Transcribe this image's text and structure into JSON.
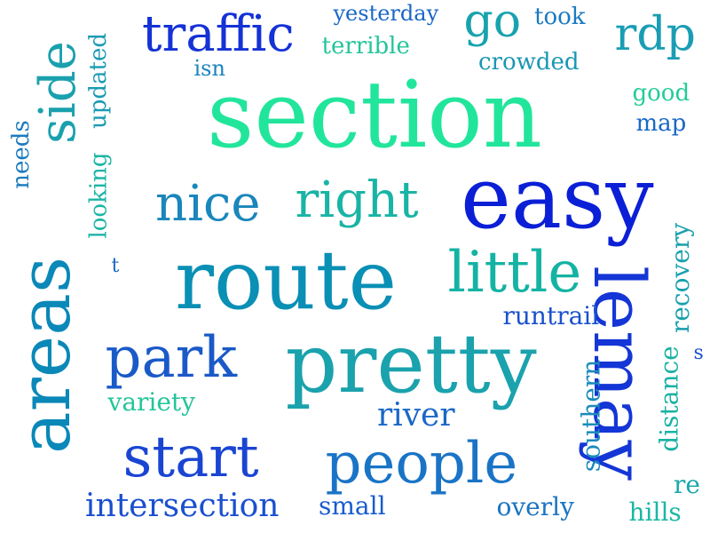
{
  "words": [
    {
      "text": "section",
      "color": "#22e59c"
    },
    {
      "text": "easy",
      "color": "#0b1fd6"
    },
    {
      "text": "route",
      "color": "#0a8fb5"
    },
    {
      "text": "pretty",
      "color": "#1aa2ad"
    },
    {
      "text": "areas",
      "color": "#0a88b8"
    },
    {
      "text": "lemay",
      "color": "#1436d6"
    },
    {
      "text": "people",
      "color": "#1a74c6"
    },
    {
      "text": "start",
      "color": "#1a45d3"
    },
    {
      "text": "park",
      "color": "#1a59c8"
    },
    {
      "text": "little",
      "color": "#14b3a3"
    },
    {
      "text": "traffic",
      "color": "#1432d6"
    },
    {
      "text": "nice",
      "color": "#1a86bc"
    },
    {
      "text": "right",
      "color": "#19b4a5"
    },
    {
      "text": "side",
      "color": "#1aa0ae"
    },
    {
      "text": "go",
      "color": "#17a3ad"
    },
    {
      "text": "rdp",
      "color": "#1a9db4"
    },
    {
      "text": "intersection",
      "color": "#1a4fd0"
    },
    {
      "text": "river",
      "color": "#1a67c8"
    },
    {
      "text": "runtrail",
      "color": "#1a52cd"
    },
    {
      "text": "recovery",
      "color": "#1aa0ad"
    },
    {
      "text": "distance",
      "color": "#19b2a3"
    },
    {
      "text": "southern",
      "color": "#1a8bbc"
    },
    {
      "text": "variety",
      "color": "#23c59a"
    },
    {
      "text": "small",
      "color": "#1a5ccd"
    },
    {
      "text": "overly",
      "color": "#1a74c2"
    },
    {
      "text": "hills",
      "color": "#1ab8a3"
    },
    {
      "text": "re",
      "color": "#1aa7ac"
    },
    {
      "text": "crowded",
      "color": "#1a96b4"
    },
    {
      "text": "terrible",
      "color": "#23c59a"
    },
    {
      "text": "yesterday",
      "color": "#1a67c6"
    },
    {
      "text": "took",
      "color": "#1a7abf"
    },
    {
      "text": "isn",
      "color": "#1a84c0"
    },
    {
      "text": "good",
      "color": "#23cc98"
    },
    {
      "text": "map",
      "color": "#1a67c6"
    },
    {
      "text": "updated",
      "color": "#1a9bb2"
    },
    {
      "text": "looking",
      "color": "#1ab5a4"
    },
    {
      "text": "needs",
      "color": "#1a7abf"
    },
    {
      "text": "t",
      "color": "#1a67c6"
    },
    {
      "text": "s",
      "color": "#1a52cd"
    }
  ]
}
